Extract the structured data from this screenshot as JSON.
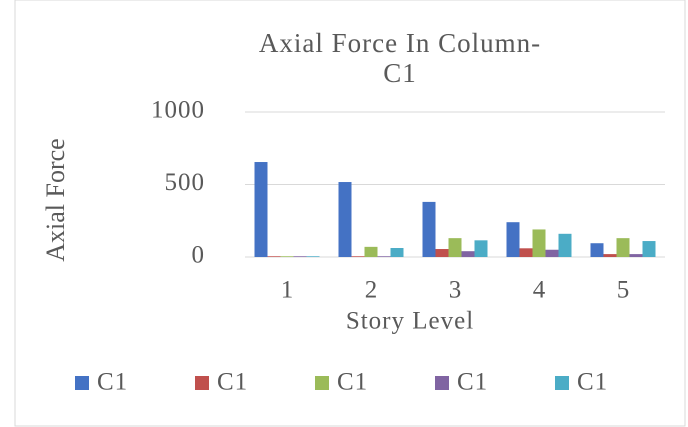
{
  "chart_data": {
    "type": "bar",
    "title": "Axial Force In Column-C1",
    "x_label": "Story Level",
    "y_label": "Axial Force",
    "categories": [
      "1",
      "2",
      "3",
      "4",
      "5"
    ],
    "series": [
      {
        "name": "C1",
        "color": "#4472c4",
        "values": [
          655,
          517,
          380,
          240,
          95
        ]
      },
      {
        "name": "C1",
        "color": "#c0504d",
        "values": [
          5,
          5,
          55,
          60,
          20
        ]
      },
      {
        "name": "C1",
        "color": "#9bbb59",
        "values": [
          5,
          70,
          130,
          190,
          130
        ]
      },
      {
        "name": "C1",
        "color": "#8064a2",
        "values": [
          5,
          5,
          40,
          50,
          20
        ]
      },
      {
        "name": "C1",
        "color": "#4bacc6",
        "values": [
          5,
          62,
          115,
          160,
          110
        ]
      }
    ],
    "ylim": [
      0,
      1000
    ],
    "yticks": [
      0,
      500,
      1000
    ],
    "grid": true,
    "legend": "bottom"
  }
}
